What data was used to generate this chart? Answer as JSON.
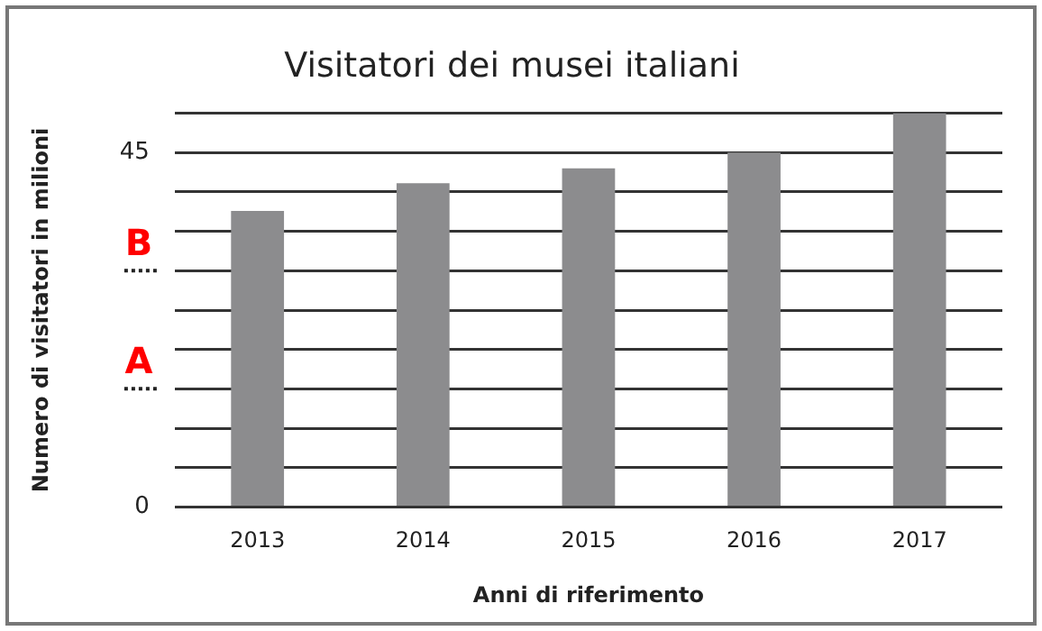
{
  "chart_data": {
    "type": "bar",
    "title": "Visitatori dei musei italiani",
    "xlabel": "Anni di riferimento",
    "ylabel": "Numero di visitatori in milioni",
    "categories": [
      "2013",
      "2014",
      "2015",
      "2016",
      "2017"
    ],
    "values": [
      37.6,
      41.1,
      43,
      45,
      50
    ],
    "color": "#8c8c8e",
    "ylim": [
      0,
      50
    ],
    "yticks": [
      0,
      {
        "value": 5,
        "label": null
      },
      {
        "value": 10,
        "label": null
      },
      {
        "value": 15,
        "label": null
      },
      {
        "value": 20,
        "label": null
      },
      {
        "value": 25,
        "label": null
      },
      {
        "value": 30,
        "label": null
      },
      {
        "value": 35,
        "label": null
      },
      {
        "value": 40,
        "label": null
      },
      45,
      {
        "value": 50,
        "label": null
      }
    ],
    "grid": "y",
    "ref_lines": [
      {
        "axis": "y",
        "value": 30,
        "label": "B",
        "line_style": "dotted"
      },
      {
        "axis": "y",
        "value": 15,
        "label": "A",
        "line_style": "dotted"
      }
    ]
  }
}
